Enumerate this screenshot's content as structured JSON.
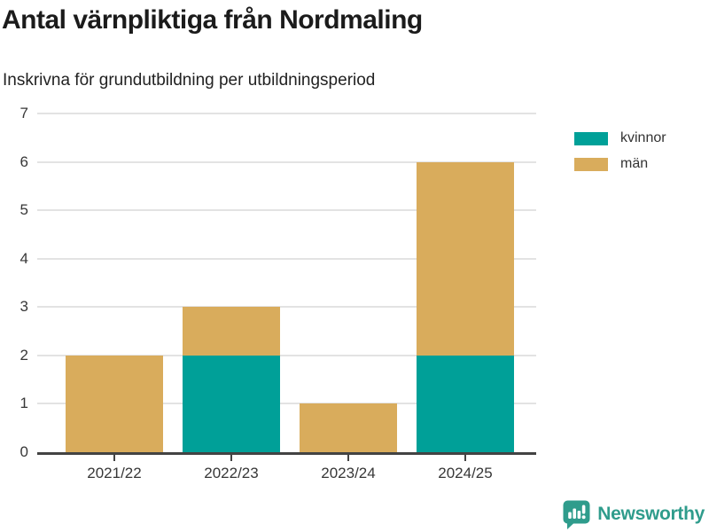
{
  "header": {
    "title": "Antal värnpliktiga från Nordmaling",
    "subtitle": "Inskrivna för grundutbildning per utbildningsperiod"
  },
  "chart_data": {
    "type": "bar",
    "stacked": true,
    "title": "Antal värnpliktiga från Nordmaling",
    "subtitle": "Inskrivna för grundutbildning per utbildningsperiod",
    "categories": [
      "2021/22",
      "2022/23",
      "2023/24",
      "2024/25"
    ],
    "series": [
      {
        "name": "kvinnor",
        "color": "#00a098",
        "values": [
          0,
          2,
          0,
          2
        ]
      },
      {
        "name": "män",
        "color": "#d9ac5c",
        "values": [
          2,
          1,
          1,
          4
        ]
      }
    ],
    "totals": [
      2,
      3,
      1,
      6
    ],
    "xlabel": "",
    "ylabel": "",
    "ylim": [
      0,
      7
    ],
    "yticks": [
      0,
      1,
      2,
      3,
      4,
      5,
      6,
      7
    ],
    "grid": "horizontal",
    "legend_position": "top-right"
  },
  "colors": {
    "kvinnor": "#00a098",
    "man": "#d9ac5c",
    "axis": "#434343",
    "gridline": "#e3e3e3",
    "tick_text": "#373737",
    "brand": "#2f9c8c"
  },
  "footer": {
    "brand": "Newsworthy",
    "logo_icon": "bar-chart-speech-bubble-icon"
  }
}
